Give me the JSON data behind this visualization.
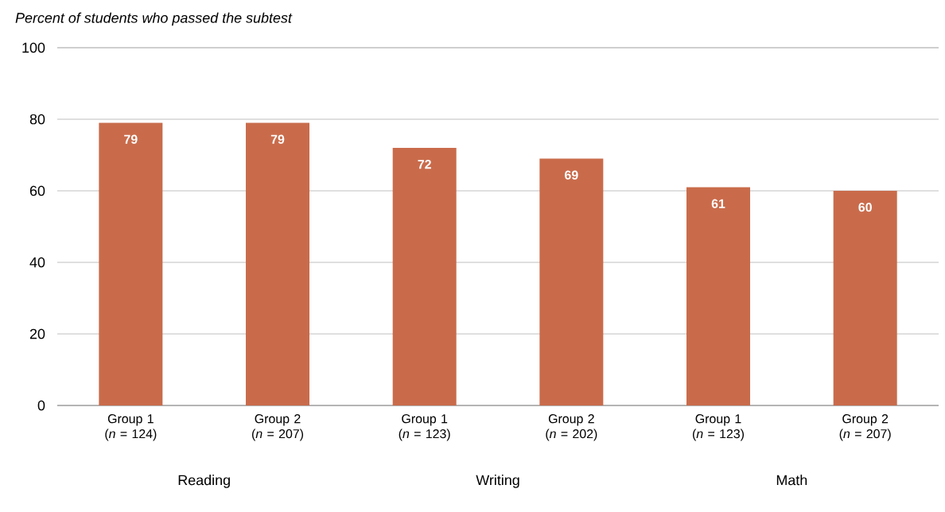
{
  "chart_data": {
    "type": "bar",
    "title": "Percent of students who passed the subtest",
    "categories": [
      "Group 1 (*n* = 124)",
      "Group 2 (*n* = 207)",
      "Group 1 (*n* = 123)",
      "Group 2 (*n* = 202)",
      "Group 1 (*n* = 123)",
      "Group 2 (*n* = 207)"
    ],
    "values": [
      79,
      79,
      72,
      69,
      61,
      60
    ],
    "color": "#c96b4b",
    "ylim": [
      0,
      100
    ],
    "yticks": [
      0,
      20,
      40,
      60,
      80,
      100
    ],
    "grid": "y",
    "data_labels": true,
    "annotations": [
      "Reading",
      "Writing",
      "Math"
    ]
  }
}
